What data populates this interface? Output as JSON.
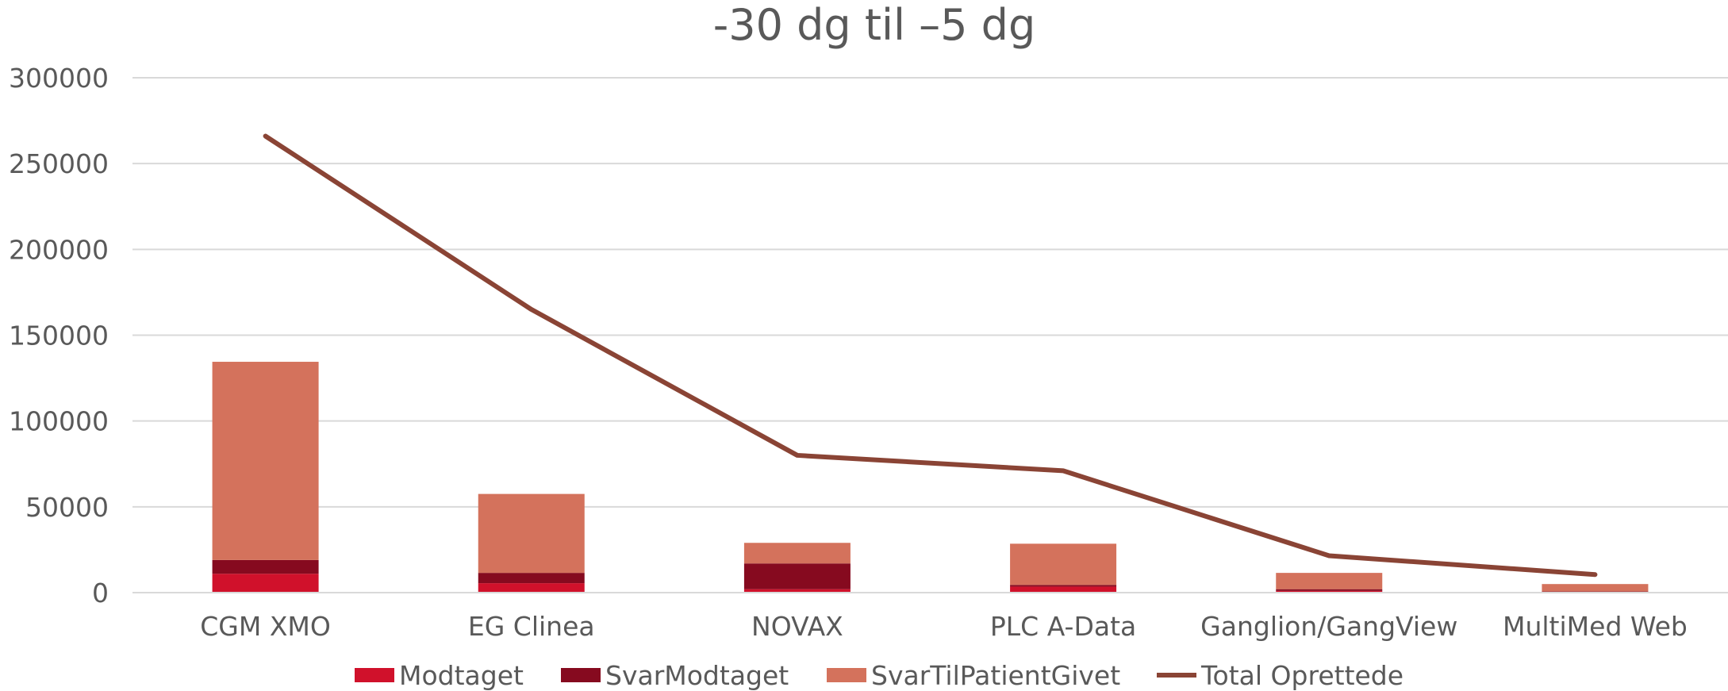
{
  "chart_data": {
    "type": "bar",
    "stacked": true,
    "title": "-30 dg til –5 dg",
    "xlabel": "",
    "ylabel": "",
    "ylim": [
      0,
      300000
    ],
    "yticks": [
      0,
      50000,
      100000,
      150000,
      200000,
      250000,
      300000
    ],
    "ytick_labels": [
      "0",
      "50000",
      "100000",
      "150000",
      "200000",
      "250000",
      "300000"
    ],
    "grid": true,
    "legend_position": "bottom",
    "categories": [
      "CGM XMO",
      "EG Clinea",
      "NOVAX",
      "PLC A-Data",
      "Ganglion/GangView",
      "MultiMed Web"
    ],
    "series": [
      {
        "name": "Modtaget",
        "type": "bar",
        "color": "#d0112b",
        "values": [
          11000,
          5500,
          2000,
          3500,
          1000,
          500
        ]
      },
      {
        "name": "SvarModtaget",
        "type": "bar",
        "color": "#860a1f",
        "values": [
          8000,
          6000,
          15000,
          1000,
          1000,
          200
        ]
      },
      {
        "name": "SvarTilPatientGivet",
        "type": "bar",
        "color": "#d4725c",
        "values": [
          115500,
          46000,
          12000,
          24000,
          9500,
          4300
        ]
      },
      {
        "name": "Total Oprettede",
        "type": "line",
        "color": "#8a4435",
        "values": [
          266000,
          165000,
          80000,
          71000,
          21500,
          10500
        ]
      }
    ]
  }
}
